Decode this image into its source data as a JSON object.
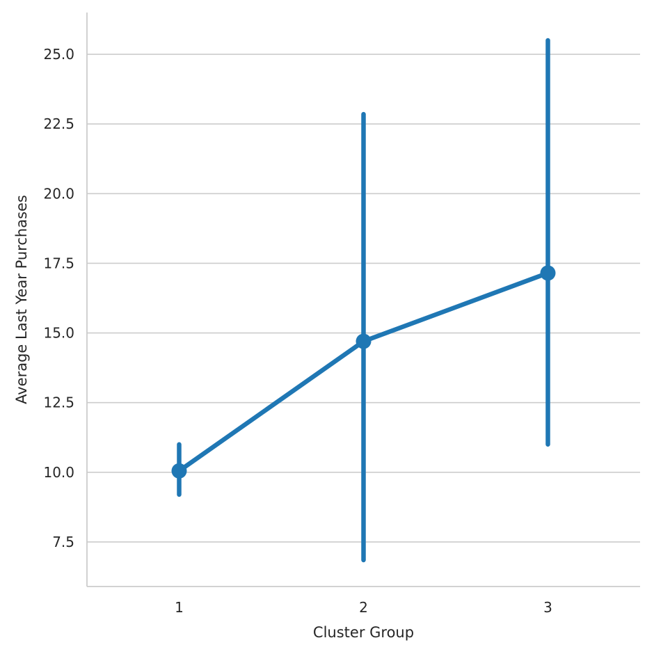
{
  "chart_data": {
    "type": "line",
    "title": "",
    "xlabel": "Cluster Group",
    "ylabel": "Average Last Year Purchases",
    "categories": [
      "1",
      "2",
      "3"
    ],
    "series": [
      {
        "values": [
          10.05,
          14.7,
          17.15
        ],
        "error_low": [
          9.2,
          6.85,
          11.0
        ],
        "error_high": [
          11.0,
          22.85,
          25.5
        ]
      }
    ],
    "ylim": [
      5.9,
      26.5
    ],
    "yticks": [
      7.5,
      10.0,
      12.5,
      15.0,
      17.5,
      20.0,
      22.5,
      25.0
    ],
    "ytick_labels": [
      "7.5",
      "10.0",
      "12.5",
      "15.0",
      "17.5",
      "20.0",
      "22.5",
      "25.0"
    ],
    "grid": "horizontal",
    "legend": "none",
    "colors": {
      "series": "#1f77b4",
      "grid": "#cccccc",
      "axis": "#cccccc",
      "text": "#262626"
    }
  }
}
